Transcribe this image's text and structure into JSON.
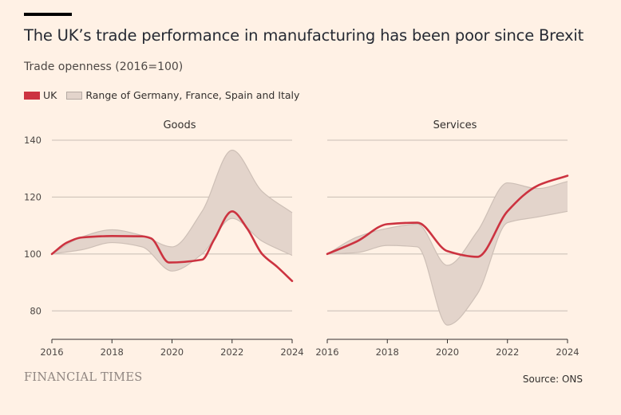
{
  "title": "The UK’s trade performance in manufacturing has been poor since Brexit",
  "subtitle": "Trade openness (2016=100)",
  "legend": {
    "uk": "UK",
    "range": "Range of Germany, France, Spain and Italy"
  },
  "footer": {
    "brand": "FINANCIAL TIMES",
    "source": "Source: ONS"
  },
  "colors": {
    "uk": "#cc3340",
    "range_fill": "#e3d4cb",
    "range_stroke": "#cdbfb6",
    "grid": "#c8bdb5"
  },
  "chart_data": [
    {
      "type": "line",
      "title": "Goods",
      "x_ticks": [
        2016,
        2018,
        2020,
        2022,
        2024
      ],
      "y_ticks": [
        80,
        100,
        120,
        140
      ],
      "xlim": [
        2016,
        2024
      ],
      "ylim": [
        70,
        140
      ],
      "uk": {
        "x": [
          2016,
          2016.5,
          2017,
          2018,
          2019,
          2019.3,
          2019.9,
          2021,
          2021.4,
          2022,
          2022.5,
          2023,
          2023.5,
          2024
        ],
        "y": [
          100,
          104,
          105.8,
          106.3,
          106.2,
          105.5,
          97,
          98,
          105,
          115,
          109,
          100,
          95.5,
          90.5
        ]
      },
      "range_upper": {
        "x": [
          2016,
          2017,
          2018,
          2019,
          2020,
          2021,
          2022,
          2023,
          2024
        ],
        "y": [
          100,
          106,
          108.5,
          106.5,
          102.5,
          115,
          136.5,
          122,
          114.5
        ]
      },
      "range_lower": {
        "x": [
          2016,
          2017,
          2018,
          2019,
          2020,
          2021,
          2022,
          2023,
          2024
        ],
        "y": [
          100,
          101.5,
          104,
          102.5,
          94,
          100,
          112.5,
          104.5,
          99.5
        ]
      }
    },
    {
      "type": "line",
      "title": "Services",
      "x_ticks": [
        2016,
        2018,
        2020,
        2022,
        2024
      ],
      "y_ticks": [
        80,
        100,
        120,
        140
      ],
      "xlim": [
        2016,
        2024
      ],
      "ylim": [
        70,
        140
      ],
      "uk": {
        "x": [
          2016,
          2017,
          2018,
          2019,
          2020,
          2021,
          2022,
          2023,
          2024
        ],
        "y": [
          100,
          104.5,
          110.5,
          111,
          101,
          99,
          115,
          124,
          127.5
        ]
      },
      "range_upper": {
        "x": [
          2016,
          2017,
          2018,
          2019,
          2020,
          2021,
          2022,
          2023,
          2024
        ],
        "y": [
          100,
          106,
          109,
          110.5,
          96,
          108,
          125,
          123,
          125.5
        ]
      },
      "range_lower": {
        "x": [
          2016,
          2017,
          2018,
          2019,
          2020,
          2021,
          2022,
          2023,
          2024
        ],
        "y": [
          100,
          100.5,
          103,
          102.5,
          75,
          86,
          111,
          113,
          115
        ]
      }
    }
  ]
}
